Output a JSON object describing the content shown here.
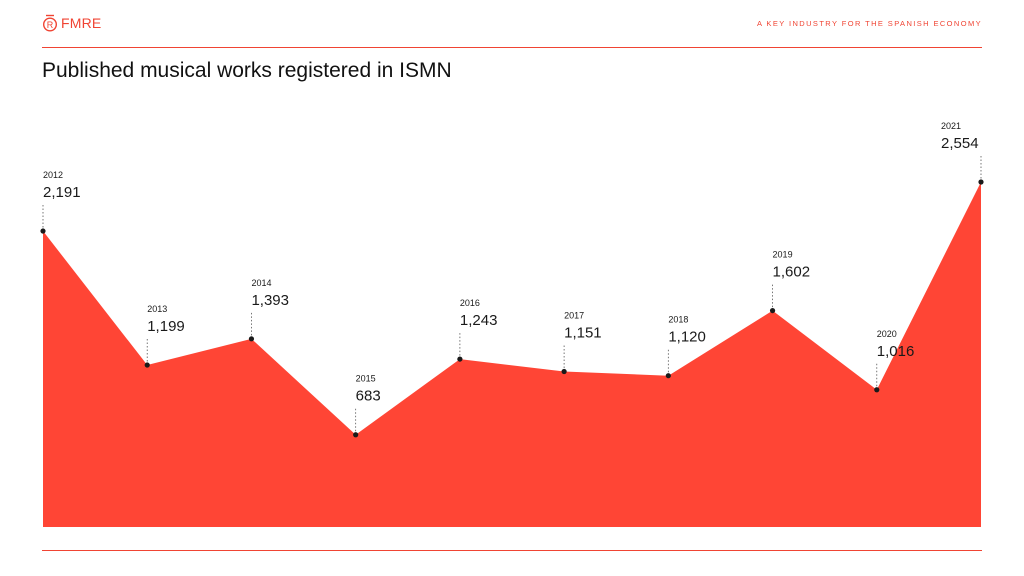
{
  "header": {
    "brand": "FMRE",
    "brand_icon": "r-circle-logo-icon",
    "tagline": "A KEY INDUSTRY FOR THE SPANISH ECONOMY"
  },
  "colors": {
    "accent": "#f04433",
    "area_fill": "#ff4535",
    "marker": "#1a1a1a"
  },
  "chart_data": {
    "type": "area",
    "title": "Published musical works registered in ISMN",
    "xlabel": "",
    "ylabel": "",
    "x": [
      "2012",
      "2013",
      "2014",
      "2015",
      "2016",
      "2017",
      "2018",
      "2019",
      "2020",
      "2021"
    ],
    "values": [
      2191,
      1199,
      1393,
      683,
      1243,
      1151,
      1120,
      1602,
      1016,
      2554
    ],
    "value_labels": [
      "2,191",
      "1,199",
      "1,393",
      "683",
      "1,243",
      "1,151",
      "1,120",
      "1,602",
      "1,016",
      "2,554"
    ],
    "ylim": [
      0,
      2554
    ],
    "grid": false,
    "legend": "none",
    "axes_visible": false,
    "annotations": "year and value label above each point with dotted leader line"
  }
}
